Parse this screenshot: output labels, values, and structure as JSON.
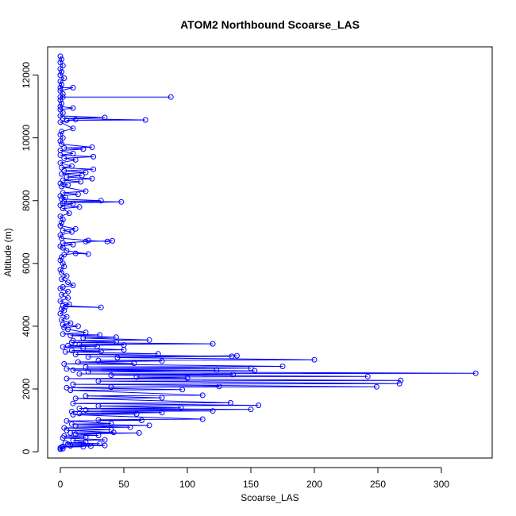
{
  "chart_data": {
    "type": "line",
    "title": "ATOM2 Northbound Scoarse_LAS",
    "xlabel": "Scoarse_LAS",
    "ylabel": "Altitude (m)",
    "xlim": [
      -10,
      340
    ],
    "ylim": [
      -200,
      12900
    ],
    "x_ticks": [
      0,
      50,
      100,
      150,
      200,
      250,
      300
    ],
    "y_ticks": [
      0,
      2000,
      4000,
      6000,
      8000,
      10000,
      12000
    ],
    "grid": false,
    "legend": "none",
    "colors": {
      "series": "#0000ff",
      "frame": "#000000"
    },
    "series": [
      {
        "marker": "open-circle",
        "points": [
          [
            0,
            12600
          ],
          [
            1,
            12500
          ],
          [
            0,
            12400
          ],
          [
            2,
            12300
          ],
          [
            0,
            12200
          ],
          [
            1,
            12100
          ],
          [
            0,
            12000
          ],
          [
            3,
            11900
          ],
          [
            0,
            11800
          ],
          [
            1,
            11700
          ],
          [
            0,
            11600
          ],
          [
            10,
            11600
          ],
          [
            0,
            11500
          ],
          [
            2,
            11400
          ],
          [
            0,
            11300
          ],
          [
            87,
            11300
          ],
          [
            2,
            11300
          ],
          [
            0,
            11200
          ],
          [
            1,
            11100
          ],
          [
            0,
            11000
          ],
          [
            10,
            10950
          ],
          [
            0,
            10900
          ],
          [
            2,
            10800
          ],
          [
            0,
            10700
          ],
          [
            35,
            10650
          ],
          [
            2,
            10620
          ],
          [
            67,
            10570
          ],
          [
            5,
            10560
          ],
          [
            12,
            10580
          ],
          [
            0,
            10500
          ],
          [
            10,
            10300
          ],
          [
            1,
            10200
          ],
          [
            0,
            10100
          ],
          [
            2,
            10000
          ],
          [
            0,
            9900
          ],
          [
            1,
            9800
          ],
          [
            25,
            9700
          ],
          [
            3,
            9680
          ],
          [
            18,
            9640
          ],
          [
            0,
            9600
          ],
          [
            10,
            9500
          ],
          [
            0,
            9450
          ],
          [
            26,
            9400
          ],
          [
            3,
            9350
          ],
          [
            12,
            9300
          ],
          [
            0,
            9200
          ],
          [
            9,
            9100
          ],
          [
            1,
            9050
          ],
          [
            26,
            9000
          ],
          [
            3,
            8950
          ],
          [
            20,
            8900
          ],
          [
            1,
            8850
          ],
          [
            17,
            8800
          ],
          [
            5,
            8750
          ],
          [
            25,
            8700
          ],
          [
            2,
            8650
          ],
          [
            16,
            8600
          ],
          [
            0,
            8550
          ],
          [
            6,
            8500
          ],
          [
            1,
            8450
          ],
          [
            20,
            8300
          ],
          [
            2,
            8250
          ],
          [
            14,
            8200
          ],
          [
            0,
            8150
          ],
          [
            4,
            8100
          ],
          [
            1,
            8050
          ],
          [
            32,
            8000
          ],
          [
            3,
            7980
          ],
          [
            48,
            7960
          ],
          [
            2,
            7920
          ],
          [
            10,
            7900
          ],
          [
            0,
            7850
          ],
          [
            15,
            7800
          ],
          [
            2,
            7750
          ],
          [
            7,
            7600
          ],
          [
            0,
            7500
          ],
          [
            2,
            7400
          ],
          [
            1,
            7300
          ],
          [
            0,
            7200
          ],
          [
            12,
            7100
          ],
          [
            2,
            7050
          ],
          [
            9,
            7000
          ],
          [
            0,
            6900
          ],
          [
            1,
            6800
          ],
          [
            22,
            6730
          ],
          [
            37,
            6700
          ],
          [
            41,
            6720
          ],
          [
            20,
            6700
          ],
          [
            2,
            6650
          ],
          [
            10,
            6600
          ],
          [
            0,
            6550
          ],
          [
            2,
            6500
          ],
          [
            5,
            6400
          ],
          [
            22,
            6300
          ],
          [
            12,
            6320
          ],
          [
            3,
            6280
          ],
          [
            1,
            6200
          ],
          [
            0,
            6100
          ],
          [
            2,
            6000
          ],
          [
            3,
            5900
          ],
          [
            0,
            5800
          ],
          [
            1,
            5700
          ],
          [
            5,
            5600
          ],
          [
            1,
            5500
          ],
          [
            6,
            5400
          ],
          [
            10,
            5300
          ],
          [
            2,
            5250
          ],
          [
            0,
            5200
          ],
          [
            6,
            5100
          ],
          [
            1,
            5000
          ],
          [
            6,
            4900
          ],
          [
            0,
            4800
          ],
          [
            7,
            4700
          ],
          [
            2,
            4650
          ],
          [
            32,
            4600
          ],
          [
            4,
            4620
          ],
          [
            1,
            4550
          ],
          [
            3,
            4500
          ],
          [
            0,
            4400
          ],
          [
            5,
            4300
          ],
          [
            1,
            4200
          ],
          [
            8,
            4100
          ],
          [
            2,
            4050
          ],
          [
            14,
            4000
          ],
          [
            3,
            3950
          ],
          [
            6,
            3900
          ],
          [
            20,
            3800
          ],
          [
            2,
            3750
          ],
          [
            31,
            3720
          ],
          [
            8,
            3700
          ],
          [
            44,
            3650
          ],
          [
            18,
            3620
          ],
          [
            70,
            3560
          ],
          [
            10,
            3540
          ],
          [
            44,
            3500
          ],
          [
            9,
            3480
          ],
          [
            120,
            3440
          ],
          [
            15,
            3420
          ],
          [
            50,
            3400
          ],
          [
            6,
            3380
          ],
          [
            29,
            3360
          ],
          [
            2,
            3340
          ],
          [
            18,
            3300
          ],
          [
            50,
            3250
          ],
          [
            9,
            3230
          ],
          [
            32,
            3200
          ],
          [
            4,
            3180
          ],
          [
            77,
            3120
          ],
          [
            12,
            3100
          ],
          [
            135,
            3040
          ],
          [
            22,
            3020
          ],
          [
            139,
            3060
          ],
          [
            45,
            3000
          ],
          [
            200,
            2930
          ],
          [
            30,
            2910
          ],
          [
            80,
            2890
          ],
          [
            14,
            2860
          ],
          [
            58,
            2820
          ],
          [
            3,
            2800
          ],
          [
            175,
            2720
          ],
          [
            20,
            2700
          ],
          [
            150,
            2660
          ],
          [
            5,
            2640
          ],
          [
            153,
            2580
          ],
          [
            10,
            2600
          ],
          [
            123,
            2600
          ],
          [
            22,
            2550
          ],
          [
            327,
            2500
          ],
          [
            15,
            2480
          ],
          [
            136,
            2460
          ],
          [
            40,
            2440
          ],
          [
            242,
            2400
          ],
          [
            60,
            2380
          ],
          [
            100,
            2350
          ],
          [
            5,
            2330
          ],
          [
            268,
            2270
          ],
          [
            30,
            2250
          ],
          [
            267,
            2170
          ],
          [
            10,
            2150
          ],
          [
            249,
            2070
          ],
          [
            40,
            2060
          ],
          [
            125,
            2080
          ],
          [
            5,
            2040
          ],
          [
            96,
            1980
          ],
          [
            8,
            1960
          ],
          [
            112,
            1800
          ],
          [
            20,
            1780
          ],
          [
            80,
            1720
          ],
          [
            12,
            1700
          ],
          [
            134,
            1560
          ],
          [
            10,
            1540
          ],
          [
            156,
            1480
          ],
          [
            30,
            1460
          ],
          [
            95,
            1400
          ],
          [
            15,
            1380
          ],
          [
            150,
            1350
          ],
          [
            20,
            1330
          ],
          [
            120,
            1300
          ],
          [
            9,
            1280
          ],
          [
            80,
            1250
          ],
          [
            15,
            1220
          ],
          [
            60,
            1200
          ],
          [
            10,
            1180
          ],
          [
            112,
            1040
          ],
          [
            30,
            1020
          ],
          [
            64,
            1000
          ],
          [
            5,
            980
          ],
          [
            40,
            900
          ],
          [
            9,
            880
          ],
          [
            70,
            840
          ],
          [
            12,
            820
          ],
          [
            55,
            780
          ],
          [
            3,
            760
          ],
          [
            40,
            700
          ],
          [
            5,
            680
          ],
          [
            42,
            620
          ],
          [
            8,
            600
          ],
          [
            62,
            600
          ],
          [
            12,
            560
          ],
          [
            30,
            520
          ],
          [
            3,
            500
          ],
          [
            20,
            460
          ],
          [
            2,
            440
          ],
          [
            35,
            380
          ],
          [
            10,
            360
          ],
          [
            20,
            300
          ],
          [
            4,
            280
          ],
          [
            31,
            260
          ],
          [
            6,
            240
          ],
          [
            35,
            200
          ],
          [
            8,
            190
          ],
          [
            24,
            180
          ],
          [
            2,
            170
          ],
          [
            18,
            160
          ],
          [
            1,
            150
          ],
          [
            0,
            120
          ],
          [
            2,
            100
          ],
          [
            0,
            80
          ]
        ]
      }
    ]
  }
}
